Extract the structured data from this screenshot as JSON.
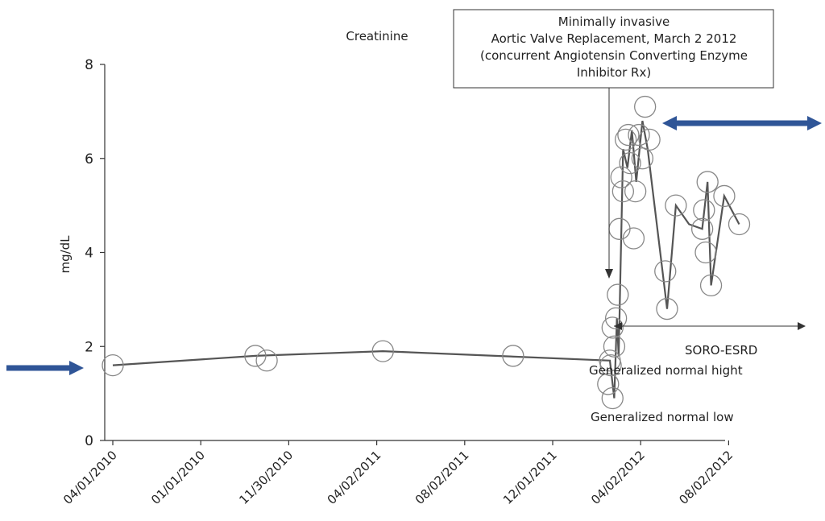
{
  "chart_data": {
    "type": "scatter",
    "title": "Creatinine",
    "ylabel": "mg/dL",
    "xlabel": "",
    "ylim": [
      0,
      8
    ],
    "yticks": [
      0,
      2,
      4,
      6,
      8
    ],
    "xtick_labels": [
      "04/01/2010",
      "01/01/2010",
      "11/30/2010",
      "04/02/2011",
      "08/02/2011",
      "12/01/2011",
      "04/02/2012",
      "08/02/2012"
    ],
    "grid": false,
    "points": [
      {
        "x": 0.0,
        "y": 1.6
      },
      {
        "x": 1.62,
        "y": 1.8
      },
      {
        "x": 1.75,
        "y": 1.7
      },
      {
        "x": 3.07,
        "y": 1.9
      },
      {
        "x": 4.55,
        "y": 1.8
      },
      {
        "x": 5.65,
        "y": 1.7
      },
      {
        "x": 5.63,
        "y": 1.2
      },
      {
        "x": 5.68,
        "y": 0.9
      },
      {
        "x": 5.66,
        "y": 1.6
      },
      {
        "x": 5.7,
        "y": 2.0
      },
      {
        "x": 5.68,
        "y": 2.4
      },
      {
        "x": 5.72,
        "y": 2.6
      },
      {
        "x": 5.74,
        "y": 3.1
      },
      {
        "x": 5.76,
        "y": 4.5
      },
      {
        "x": 5.8,
        "y": 5.3
      },
      {
        "x": 5.78,
        "y": 5.6
      },
      {
        "x": 5.83,
        "y": 6.4
      },
      {
        "x": 5.86,
        "y": 6.5
      },
      {
        "x": 5.88,
        "y": 5.9
      },
      {
        "x": 5.92,
        "y": 4.3
      },
      {
        "x": 5.94,
        "y": 5.3
      },
      {
        "x": 5.98,
        "y": 6.5
      },
      {
        "x": 6.02,
        "y": 6.0
      },
      {
        "x": 6.05,
        "y": 7.1
      },
      {
        "x": 6.1,
        "y": 6.4
      },
      {
        "x": 6.28,
        "y": 3.6
      },
      {
        "x": 6.3,
        "y": 2.8
      },
      {
        "x": 6.4,
        "y": 5.0
      },
      {
        "x": 6.7,
        "y": 4.5
      },
      {
        "x": 6.72,
        "y": 4.9
      },
      {
        "x": 6.74,
        "y": 4.0
      },
      {
        "x": 6.76,
        "y": 5.5
      },
      {
        "x": 6.8,
        "y": 3.3
      },
      {
        "x": 6.95,
        "y": 5.2
      },
      {
        "x": 7.12,
        "y": 4.6
      }
    ],
    "line": [
      {
        "x": 0.0,
        "y": 1.6
      },
      {
        "x": 1.62,
        "y": 1.8
      },
      {
        "x": 3.07,
        "y": 1.9
      },
      {
        "x": 5.65,
        "y": 1.7
      },
      {
        "x": 5.7,
        "y": 0.9
      },
      {
        "x": 5.73,
        "y": 2.6
      },
      {
        "x": 5.75,
        "y": 1.8
      },
      {
        "x": 5.8,
        "y": 6.2
      },
      {
        "x": 5.85,
        "y": 5.8
      },
      {
        "x": 5.9,
        "y": 6.6
      },
      {
        "x": 5.95,
        "y": 5.5
      },
      {
        "x": 6.02,
        "y": 6.8
      },
      {
        "x": 6.08,
        "y": 6.2
      },
      {
        "x": 6.3,
        "y": 2.8
      },
      {
        "x": 6.4,
        "y": 5.0
      },
      {
        "x": 6.55,
        "y": 4.6
      },
      {
        "x": 6.7,
        "y": 4.5
      },
      {
        "x": 6.76,
        "y": 5.5
      },
      {
        "x": 6.8,
        "y": 3.3
      },
      {
        "x": 6.95,
        "y": 5.2
      },
      {
        "x": 7.12,
        "y": 4.6
      }
    ],
    "annotations": {
      "event_box_lines": [
        "Minimally invasive",
        "Aortic Valve Replacement, March 2 2012",
        "(concurrent Angiotensin Converting Enzyme",
        "Inhibitor Rx)"
      ],
      "soro_label": "SORO-ESRD",
      "normal_high_label": "Generalized normal hight",
      "normal_low_label": "Generalized normal low"
    },
    "colors": {
      "line": "#555555",
      "marker": "#888888",
      "arrow_blue": "#2f5597"
    }
  }
}
